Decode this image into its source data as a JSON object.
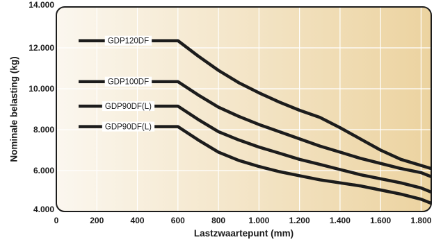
{
  "chart_data": {
    "type": "line",
    "title": "",
    "xlabel": "Lastzwaartepunt (mm)",
    "ylabel": "Nominale belasting (kg)",
    "xlim": [
      0,
      1850
    ],
    "ylim": [
      4000,
      14000
    ],
    "x_ticks": [
      0,
      200,
      400,
      600,
      800,
      1000,
      1200,
      1400,
      1600,
      1800
    ],
    "x_tick_labels": [
      "0",
      "200",
      "400",
      "600",
      "800",
      "1.000",
      "1.200",
      "1.400",
      "1.600",
      "1.800"
    ],
    "y_ticks": [
      4000,
      6000,
      8000,
      10000,
      12000,
      14000
    ],
    "y_tick_labels": [
      "4.000",
      "6.000",
      "8.000",
      "10.000",
      "12.000",
      "14.000"
    ],
    "grid": true,
    "series": [
      {
        "name": "GDP120DF",
        "points": [
          [
            110,
            12350
          ],
          [
            600,
            12350
          ],
          [
            700,
            11600
          ],
          [
            800,
            10900
          ],
          [
            900,
            10300
          ],
          [
            1000,
            9800
          ],
          [
            1100,
            9350
          ],
          [
            1200,
            8950
          ],
          [
            1300,
            8600
          ],
          [
            1400,
            8100
          ],
          [
            1500,
            7550
          ],
          [
            1600,
            7000
          ],
          [
            1700,
            6550
          ],
          [
            1800,
            6250
          ],
          [
            1850,
            6100
          ]
        ]
      },
      {
        "name": "GDP100DF",
        "points": [
          [
            110,
            10350
          ],
          [
            600,
            10350
          ],
          [
            700,
            9700
          ],
          [
            800,
            9100
          ],
          [
            900,
            8650
          ],
          [
            1000,
            8250
          ],
          [
            1100,
            7900
          ],
          [
            1200,
            7550
          ],
          [
            1300,
            7200
          ],
          [
            1400,
            6900
          ],
          [
            1500,
            6600
          ],
          [
            1600,
            6350
          ],
          [
            1700,
            6100
          ],
          [
            1800,
            5900
          ],
          [
            1850,
            5700
          ]
        ]
      },
      {
        "name": "GDP90DF(L)",
        "points": [
          [
            110,
            9150
          ],
          [
            600,
            9150
          ],
          [
            700,
            8500
          ],
          [
            800,
            7900
          ],
          [
            900,
            7500
          ],
          [
            1000,
            7150
          ],
          [
            1100,
            6850
          ],
          [
            1200,
            6550
          ],
          [
            1300,
            6300
          ],
          [
            1400,
            6050
          ],
          [
            1500,
            5800
          ],
          [
            1600,
            5600
          ],
          [
            1700,
            5400
          ],
          [
            1800,
            5150
          ],
          [
            1850,
            4950
          ]
        ]
      },
      {
        "name": "GDP90DF(L)",
        "points": [
          [
            110,
            8150
          ],
          [
            600,
            8150
          ],
          [
            700,
            7500
          ],
          [
            800,
            6900
          ],
          [
            900,
            6500
          ],
          [
            1000,
            6200
          ],
          [
            1100,
            5950
          ],
          [
            1200,
            5750
          ],
          [
            1300,
            5550
          ],
          [
            1400,
            5400
          ],
          [
            1500,
            5250
          ],
          [
            1600,
            5050
          ],
          [
            1700,
            4850
          ],
          [
            1800,
            4600
          ],
          [
            1850,
            4400
          ]
        ]
      }
    ],
    "background_gradient": [
      "#fbf7ef",
      "#ecd3a0"
    ],
    "line_color": "#1c1c1c"
  }
}
